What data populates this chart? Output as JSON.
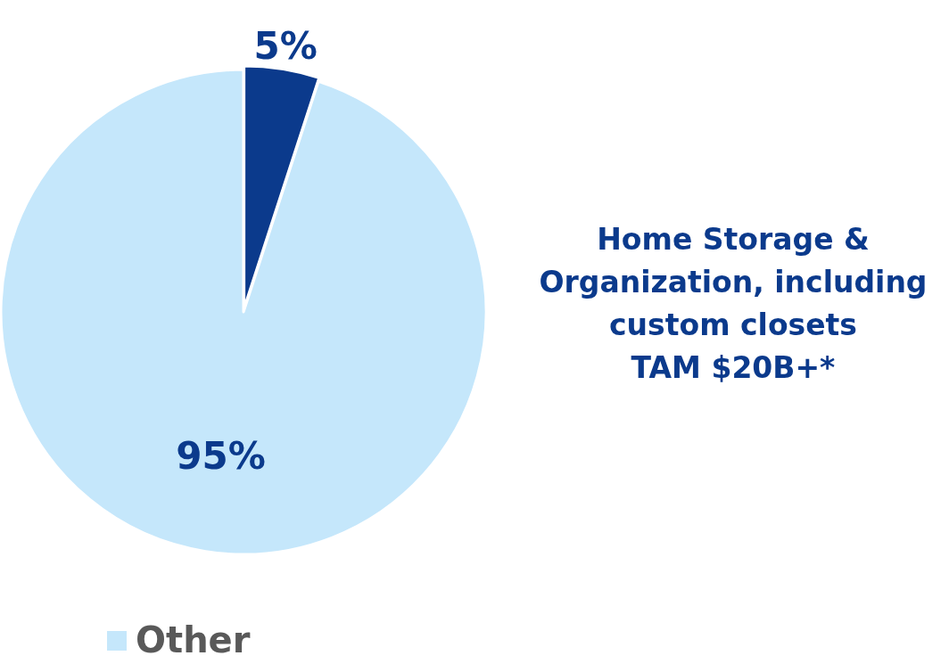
{
  "chart_data": {
    "type": "pie",
    "categories": [
      null,
      "Other"
    ],
    "values": [
      5,
      95
    ],
    "colors": [
      "#0b3a8c",
      "#c5e7fb"
    ],
    "value_labels": [
      "5%",
      "95%"
    ],
    "legend": "bottom left",
    "annotations": [
      "Home Storage &\nOrganization, including\ncustom closets\nTAM $20B+*"
    ]
  }
}
